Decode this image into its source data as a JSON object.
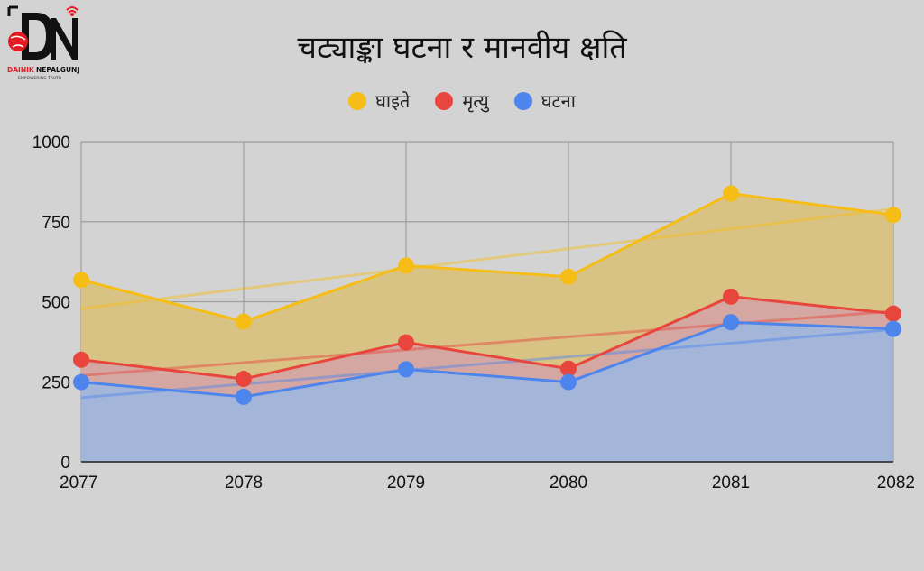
{
  "logo": {
    "initials": "DN",
    "name_part1": "DAINIK",
    "name_part2": "NEPALGUNJ",
    "tagline": "EMPOWERING TRUTH"
  },
  "colors": {
    "background": "#d3d3d3",
    "grid": "#9e9e9e",
    "ghaite": "#f6bd16",
    "mrityu": "#e8453c",
    "ghatana": "#4e85ec"
  },
  "chart_data": {
    "type": "area",
    "title": "चट्याङ्का घटना र मानवीय क्षति",
    "xlabel": "",
    "ylabel": "",
    "categories": [
      "2077",
      "2078",
      "2079",
      "2080",
      "2081",
      "2082"
    ],
    "ylim": [
      0,
      1000
    ],
    "yticks": [
      0,
      250,
      500,
      750,
      1000
    ],
    "grid": true,
    "legend_position": "top",
    "trendlines": true,
    "series": [
      {
        "name": "घाइते",
        "color": "#f6bd16",
        "values": [
          568,
          438,
          613,
          578,
          838,
          771
        ]
      },
      {
        "name": "मृत्यु",
        "color": "#e8453c",
        "values": [
          319,
          259,
          373,
          291,
          516,
          463
        ]
      },
      {
        "name": "घटना",
        "color": "#4e85ec",
        "values": [
          249,
          203,
          289,
          249,
          436,
          415
        ]
      }
    ]
  }
}
